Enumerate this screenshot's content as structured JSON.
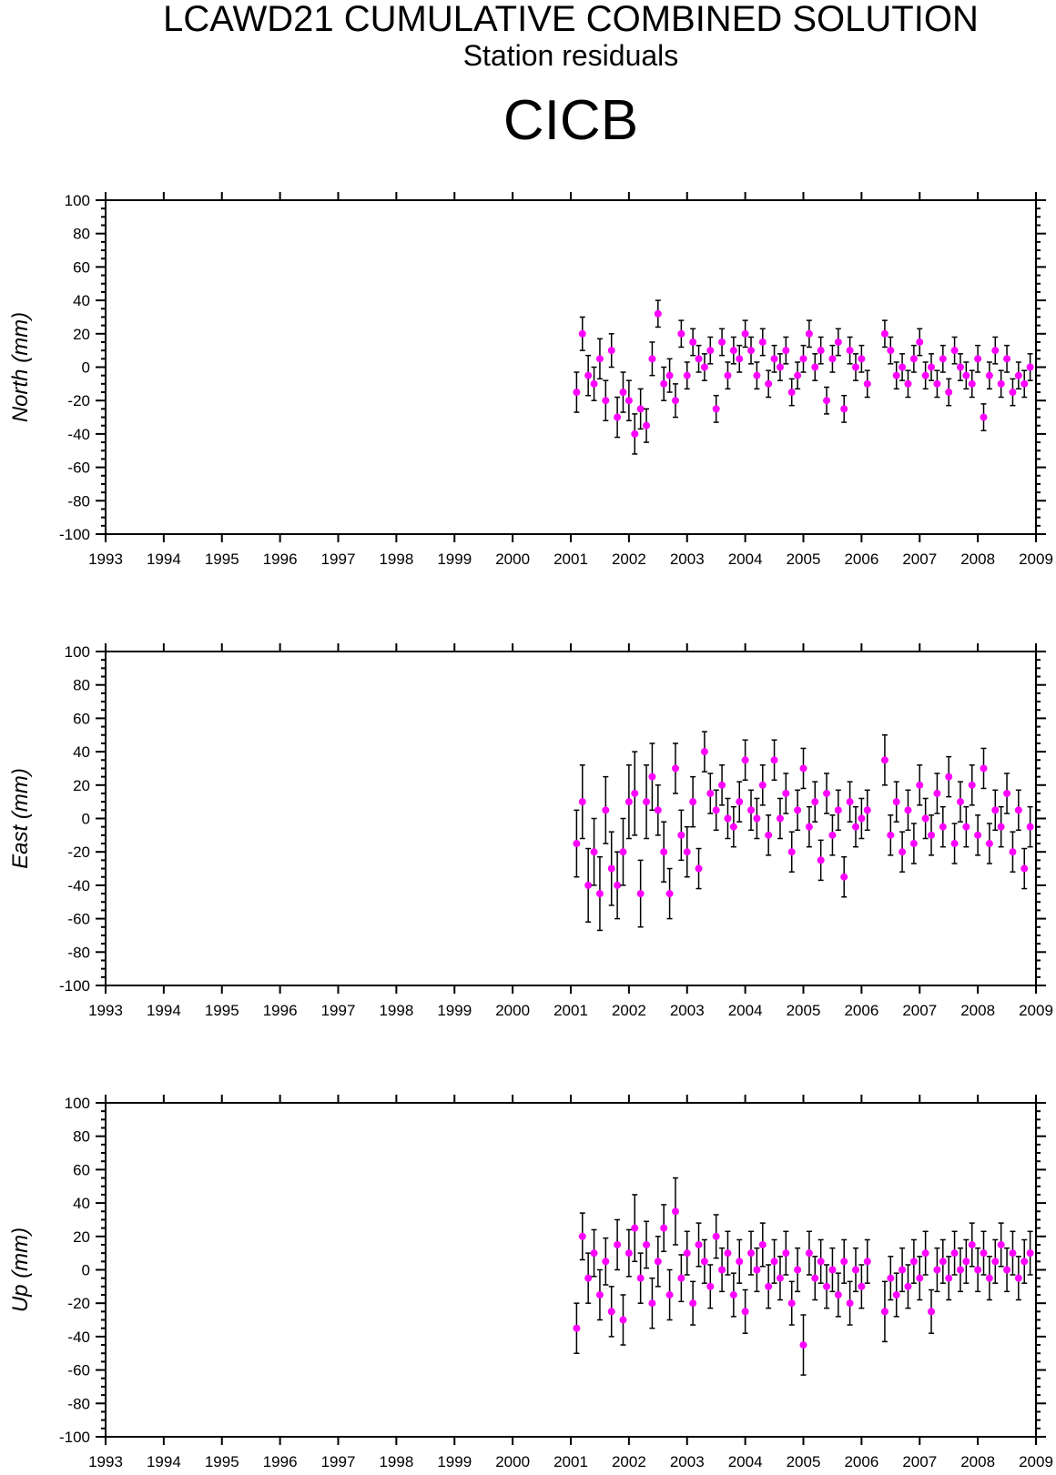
{
  "header": {
    "title": "LCAWD21 CUMULATIVE COMBINED SOLUTION",
    "subtitle": "Station residuals",
    "station": "CICB"
  },
  "colors": {
    "marker": "#ff00ff",
    "errorbar": "#000000",
    "axis": "#000000"
  },
  "chart_data": [
    {
      "type": "scatter",
      "panel": "north",
      "ylabel": "North (mm)",
      "xlim": [
        1993,
        2009
      ],
      "ylim": [
        -100,
        100
      ],
      "xticks": [
        "1993",
        "1994",
        "1995",
        "1996",
        "1997",
        "1998",
        "1999",
        "2000",
        "2001",
        "2002",
        "2003",
        "2004",
        "2005",
        "2006",
        "2007",
        "2008",
        "2009"
      ],
      "yticks": [
        "100",
        "80",
        "60",
        "40",
        "20",
        "0",
        "-20",
        "-40",
        "-60",
        "-80",
        "-100"
      ],
      "grid": false,
      "series": [
        {
          "x": [
            2001.1,
            2001.2,
            2001.3,
            2001.4,
            2001.5,
            2001.6,
            2001.7,
            2001.8,
            2001.9,
            2002.0,
            2002.1,
            2002.2,
            2002.3,
            2002.4,
            2002.5,
            2002.6,
            2002.7,
            2002.8,
            2002.9,
            2003.0,
            2003.1,
            2003.2,
            2003.3,
            2003.4,
            2003.5,
            2003.6,
            2003.7,
            2003.8,
            2003.9,
            2004.0,
            2004.1,
            2004.2,
            2004.3,
            2004.4,
            2004.5,
            2004.6,
            2004.7,
            2004.8,
            2004.9,
            2005.0,
            2005.1,
            2005.2,
            2005.3,
            2005.4,
            2005.5,
            2005.6,
            2005.7,
            2005.8,
            2005.9,
            2006.0,
            2006.1,
            2006.4,
            2006.5,
            2006.6,
            2006.7,
            2006.8,
            2006.9,
            2007.0,
            2007.1,
            2007.2,
            2007.3,
            2007.4,
            2007.5,
            2007.6,
            2007.7,
            2007.8,
            2007.9,
            2008.0,
            2008.1,
            2008.2,
            2008.3,
            2008.4,
            2008.5,
            2008.6,
            2008.7,
            2008.8,
            2008.9
          ],
          "y": [
            -15,
            20,
            -5,
            -10,
            5,
            -20,
            10,
            -30,
            -15,
            -20,
            -40,
            -25,
            -35,
            5,
            32,
            -10,
            -5,
            -20,
            20,
            -5,
            15,
            5,
            0,
            10,
            -25,
            15,
            -5,
            10,
            5,
            20,
            10,
            -5,
            15,
            -10,
            5,
            0,
            10,
            -15,
            -5,
            5,
            20,
            0,
            10,
            -20,
            5,
            15,
            -25,
            10,
            0,
            5,
            -10,
            20,
            10,
            -5,
            0,
            -10,
            5,
            15,
            -5,
            0,
            -10,
            5,
            -15,
            10,
            0,
            -5,
            -10,
            5,
            -30,
            -5,
            10,
            -10,
            5,
            -15,
            -5,
            -10,
            0
          ],
          "err": [
            12,
            10,
            12,
            10,
            12,
            12,
            10,
            12,
            12,
            12,
            12,
            12,
            10,
            10,
            8,
            10,
            10,
            10,
            8,
            8,
            8,
            8,
            8,
            8,
            8,
            8,
            8,
            8,
            8,
            8,
            8,
            8,
            8,
            8,
            8,
            8,
            8,
            8,
            8,
            8,
            8,
            8,
            8,
            8,
            8,
            8,
            8,
            8,
            8,
            8,
            8,
            8,
            8,
            8,
            8,
            8,
            8,
            8,
            8,
            8,
            8,
            8,
            8,
            8,
            8,
            8,
            8,
            8,
            8,
            8,
            8,
            8,
            8,
            8,
            8,
            8,
            8
          ]
        }
      ]
    },
    {
      "type": "scatter",
      "panel": "east",
      "ylabel": "East (mm)",
      "xlim": [
        1993,
        2009
      ],
      "ylim": [
        -100,
        100
      ],
      "xticks": [
        "1993",
        "1994",
        "1995",
        "1996",
        "1997",
        "1998",
        "1999",
        "2000",
        "2001",
        "2002",
        "2003",
        "2004",
        "2005",
        "2006",
        "2007",
        "2008",
        "2009"
      ],
      "yticks": [
        "100",
        "80",
        "60",
        "40",
        "20",
        "0",
        "-20",
        "-40",
        "-60",
        "-80",
        "-100"
      ],
      "grid": false,
      "series": [
        {
          "x": [
            2001.1,
            2001.2,
            2001.3,
            2001.4,
            2001.5,
            2001.6,
            2001.7,
            2001.8,
            2001.9,
            2002.0,
            2002.1,
            2002.2,
            2002.3,
            2002.4,
            2002.5,
            2002.6,
            2002.7,
            2002.8,
            2002.9,
            2003.0,
            2003.1,
            2003.2,
            2003.3,
            2003.4,
            2003.5,
            2003.6,
            2003.7,
            2003.8,
            2003.9,
            2004.0,
            2004.1,
            2004.2,
            2004.3,
            2004.4,
            2004.5,
            2004.6,
            2004.7,
            2004.8,
            2004.9,
            2005.0,
            2005.1,
            2005.2,
            2005.3,
            2005.4,
            2005.5,
            2005.6,
            2005.7,
            2005.8,
            2005.9,
            2006.0,
            2006.1,
            2006.4,
            2006.5,
            2006.6,
            2006.7,
            2006.8,
            2006.9,
            2007.0,
            2007.1,
            2007.2,
            2007.3,
            2007.4,
            2007.5,
            2007.6,
            2007.7,
            2007.8,
            2007.9,
            2008.0,
            2008.1,
            2008.2,
            2008.3,
            2008.4,
            2008.5,
            2008.6,
            2008.7,
            2008.8,
            2008.9
          ],
          "y": [
            -15,
            10,
            -40,
            -20,
            -45,
            5,
            -30,
            -40,
            -20,
            10,
            15,
            -45,
            10,
            25,
            5,
            -20,
            -45,
            30,
            -10,
            -20,
            10,
            -30,
            40,
            15,
            5,
            20,
            0,
            -5,
            10,
            35,
            5,
            0,
            20,
            -10,
            35,
            0,
            15,
            -20,
            5,
            30,
            -5,
            10,
            -25,
            15,
            -10,
            5,
            -35,
            10,
            -5,
            0,
            5,
            35,
            -10,
            10,
            -20,
            5,
            -15,
            20,
            0,
            -10,
            15,
            -5,
            25,
            -15,
            10,
            -5,
            20,
            -10,
            30,
            -15,
            5,
            -5,
            15,
            -20,
            5,
            -30,
            -5
          ],
          "err": [
            20,
            22,
            22,
            20,
            22,
            20,
            22,
            20,
            20,
            22,
            25,
            20,
            22,
            20,
            15,
            18,
            15,
            15,
            15,
            15,
            15,
            12,
            12,
            12,
            12,
            12,
            12,
            12,
            12,
            12,
            12,
            12,
            12,
            12,
            12,
            12,
            12,
            12,
            12,
            12,
            12,
            12,
            12,
            12,
            12,
            12,
            12,
            12,
            12,
            12,
            12,
            15,
            12,
            12,
            12,
            12,
            12,
            12,
            12,
            12,
            12,
            12,
            12,
            12,
            12,
            12,
            12,
            12,
            12,
            12,
            12,
            12,
            12,
            12,
            12,
            12,
            12
          ]
        }
      ]
    },
    {
      "type": "scatter",
      "panel": "up",
      "ylabel": "Up (mm)",
      "xlim": [
        1993,
        2009
      ],
      "ylim": [
        -100,
        100
      ],
      "xticks": [
        "1993",
        "1994",
        "1995",
        "1996",
        "1997",
        "1998",
        "1999",
        "2000",
        "2001",
        "2002",
        "2003",
        "2004",
        "2005",
        "2006",
        "2007",
        "2008",
        "2009"
      ],
      "yticks": [
        "100",
        "80",
        "60",
        "40",
        "20",
        "0",
        "-20",
        "-40",
        "-60",
        "-80",
        "-100"
      ],
      "grid": false,
      "series": [
        {
          "x": [
            2001.1,
            2001.2,
            2001.3,
            2001.4,
            2001.5,
            2001.6,
            2001.7,
            2001.8,
            2001.9,
            2002.0,
            2002.1,
            2002.2,
            2002.3,
            2002.4,
            2002.5,
            2002.6,
            2002.7,
            2002.8,
            2002.9,
            2003.0,
            2003.1,
            2003.2,
            2003.3,
            2003.4,
            2003.5,
            2003.6,
            2003.7,
            2003.8,
            2003.9,
            2004.0,
            2004.1,
            2004.2,
            2004.3,
            2004.4,
            2004.5,
            2004.6,
            2004.7,
            2004.8,
            2004.9,
            2005.0,
            2005.1,
            2005.2,
            2005.3,
            2005.4,
            2005.5,
            2005.6,
            2005.7,
            2005.8,
            2005.9,
            2006.0,
            2006.1,
            2006.4,
            2006.5,
            2006.6,
            2006.7,
            2006.8,
            2006.9,
            2007.0,
            2007.1,
            2007.2,
            2007.3,
            2007.4,
            2007.5,
            2007.6,
            2007.7,
            2007.8,
            2007.9,
            2008.0,
            2008.1,
            2008.2,
            2008.3,
            2008.4,
            2008.5,
            2008.6,
            2008.7,
            2008.8,
            2008.9
          ],
          "y": [
            -35,
            20,
            -5,
            10,
            -15,
            5,
            -25,
            15,
            -30,
            10,
            25,
            -5,
            15,
            -20,
            5,
            25,
            -15,
            35,
            -5,
            10,
            -20,
            15,
            5,
            -10,
            20,
            0,
            10,
            -15,
            5,
            -25,
            10,
            0,
            15,
            -10,
            5,
            -5,
            10,
            -20,
            0,
            -45,
            10,
            -5,
            5,
            -10,
            0,
            -15,
            5,
            -20,
            0,
            -10,
            5,
            -25,
            -5,
            -15,
            0,
            -10,
            5,
            -5,
            10,
            -25,
            0,
            5,
            -5,
            10,
            0,
            5,
            15,
            0,
            10,
            -5,
            5,
            15,
            0,
            10,
            -5,
            5,
            10
          ],
          "err": [
            15,
            14,
            15,
            14,
            15,
            14,
            15,
            15,
            15,
            14,
            20,
            15,
            14,
            15,
            15,
            14,
            15,
            20,
            14,
            13,
            13,
            13,
            13,
            13,
            13,
            13,
            13,
            13,
            13,
            13,
            13,
            13,
            13,
            13,
            13,
            13,
            13,
            13,
            13,
            18,
            13,
            13,
            13,
            13,
            13,
            13,
            13,
            13,
            13,
            13,
            13,
            18,
            13,
            13,
            13,
            13,
            13,
            13,
            13,
            13,
            13,
            13,
            13,
            13,
            13,
            13,
            13,
            13,
            13,
            13,
            13,
            13,
            13,
            13,
            13,
            13,
            13
          ]
        }
      ]
    }
  ]
}
